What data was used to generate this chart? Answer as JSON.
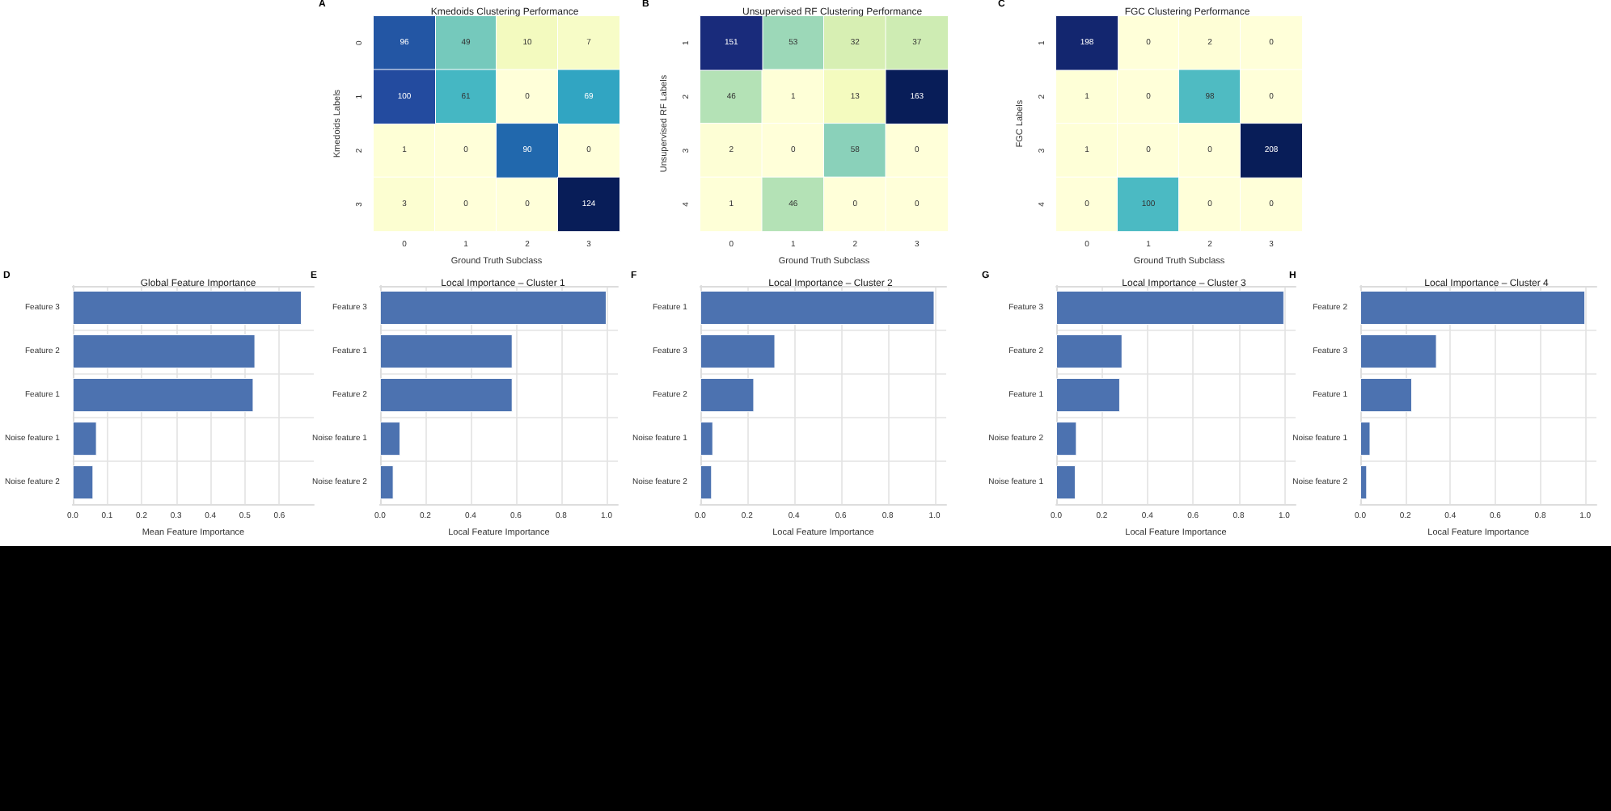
{
  "chart_data": [
    {
      "type": "heatmap",
      "title": "Kmedoids Clustering Performance",
      "xlabel": "Ground Truth Subclass",
      "ylabel": "Kmedoids Labels",
      "annotations": [
        "A"
      ],
      "categories": [
        "0",
        "1",
        "2",
        "3"
      ],
      "y_categories": [
        "0",
        "1",
        "2",
        "3"
      ],
      "cells": [
        [
          96,
          49,
          10,
          7
        ],
        [
          100,
          61,
          0,
          69
        ],
        [
          1,
          0,
          90,
          0
        ],
        [
          3,
          0,
          0,
          124
        ]
      ],
      "data_labels": true
    },
    {
      "type": "heatmap",
      "title": "Unsupervised RF Clustering Performance",
      "xlabel": "Ground Truth Subclass",
      "ylabel": "Unsupervised RF Labels",
      "annotations": [
        "B"
      ],
      "categories": [
        "0",
        "1",
        "2",
        "3"
      ],
      "y_categories": [
        "1",
        "2",
        "3",
        "4"
      ],
      "cells": [
        [
          151,
          53,
          32,
          37
        ],
        [
          46,
          1,
          13,
          163
        ],
        [
          2,
          0,
          58,
          0
        ],
        [
          1,
          46,
          0,
          0
        ]
      ],
      "data_labels": true
    },
    {
      "type": "heatmap",
      "title": "FGC Clustering Performance",
      "xlabel": "Ground Truth Subclass",
      "ylabel": "FGC Labels",
      "annotations": [
        "C"
      ],
      "categories": [
        "0",
        "1",
        "2",
        "3"
      ],
      "y_categories": [
        "1",
        "2",
        "3",
        "4"
      ],
      "cells": [
        [
          198,
          0,
          2,
          0
        ],
        [
          1,
          0,
          98,
          0
        ],
        [
          1,
          0,
          0,
          208
        ],
        [
          0,
          100,
          0,
          0
        ]
      ],
      "data_labels": true
    },
    {
      "type": "bar",
      "orientation": "horizontal",
      "title": "Global Feature Importance",
      "xlabel": "Mean Feature Importance",
      "annotations": [
        "D"
      ],
      "categories": [
        "Feature 3",
        "Feature 2",
        "Feature 1",
        "Noise feature 1",
        "Noise feature 2"
      ],
      "values": [
        0.665,
        0.53,
        0.525,
        0.07,
        0.06
      ],
      "color": "#4c72b0",
      "xlim": [
        0,
        0.7
      ],
      "xticks": [
        {
          "value": 0,
          "label": "0.0"
        },
        {
          "value": 0.1,
          "label": "0.1"
        },
        {
          "value": 0.2,
          "label": "0.2"
        },
        {
          "value": 0.3,
          "label": "0.3"
        },
        {
          "value": 0.4,
          "label": "0.4"
        },
        {
          "value": 0.5,
          "label": "0.5"
        },
        {
          "value": 0.6,
          "label": "0.6"
        }
      ],
      "grid": true
    },
    {
      "type": "bar",
      "orientation": "horizontal",
      "title": "Local Importance – Cluster 1",
      "xlabel": "Local Feature Importance",
      "annotations": [
        "E"
      ],
      "categories": [
        "Feature 3",
        "Feature 1",
        "Feature 2",
        "Noise feature 1",
        "Noise feature 2"
      ],
      "values": [
        1.0,
        0.585,
        0.585,
        0.09,
        0.06
      ],
      "color": "#4c72b0",
      "xlim": [
        0,
        1.05
      ],
      "xticks": [
        {
          "value": 0,
          "label": "0.0"
        },
        {
          "value": 0.2,
          "label": "0.2"
        },
        {
          "value": 0.4,
          "label": "0.4"
        },
        {
          "value": 0.6,
          "label": "0.6"
        },
        {
          "value": 0.8,
          "label": "0.8"
        },
        {
          "value": 1,
          "label": "1.0"
        }
      ],
      "grid": true
    },
    {
      "type": "bar",
      "orientation": "horizontal",
      "title": "Local Importance – Cluster 2",
      "xlabel": "Local Feature Importance",
      "annotations": [
        "F"
      ],
      "categories": [
        "Feature 1",
        "Feature 3",
        "Feature 2",
        "Noise feature 1",
        "Noise feature 2"
      ],
      "values": [
        1.0,
        0.32,
        0.23,
        0.055,
        0.05
      ],
      "color": "#4c72b0",
      "xlim": [
        0,
        1.05
      ],
      "xticks": [
        {
          "value": 0,
          "label": "0.0"
        },
        {
          "value": 0.2,
          "label": "0.2"
        },
        {
          "value": 0.4,
          "label": "0.4"
        },
        {
          "value": 0.6,
          "label": "0.6"
        },
        {
          "value": 0.8,
          "label": "0.8"
        },
        {
          "value": 1,
          "label": "1.0"
        }
      ],
      "grid": true
    },
    {
      "type": "bar",
      "orientation": "horizontal",
      "title": "Local Importance – Cluster 3",
      "xlabel": "Local Feature Importance",
      "annotations": [
        "G"
      ],
      "categories": [
        "Feature 3",
        "Feature 2",
        "Feature 1",
        "Noise feature 2",
        "Noise feature 1"
      ],
      "values": [
        1.0,
        0.29,
        0.28,
        0.09,
        0.085
      ],
      "color": "#4c72b0",
      "xlim": [
        0,
        1.05
      ],
      "xticks": [
        {
          "value": 0,
          "label": "0.0"
        },
        {
          "value": 0.2,
          "label": "0.2"
        },
        {
          "value": 0.4,
          "label": "0.4"
        },
        {
          "value": 0.6,
          "label": "0.6"
        },
        {
          "value": 0.8,
          "label": "0.8"
        },
        {
          "value": 1,
          "label": "1.0"
        }
      ],
      "grid": true
    },
    {
      "type": "bar",
      "orientation": "horizontal",
      "title": "Local Importance – Cluster 4",
      "xlabel": "Local Feature Importance",
      "annotations": [
        "H"
      ],
      "categories": [
        "Feature 2",
        "Feature 3",
        "Feature 1",
        "Noise feature 1",
        "Noise feature 2"
      ],
      "values": [
        1.0,
        0.34,
        0.23,
        0.045,
        0.03
      ],
      "color": "#4c72b0",
      "xlim": [
        0,
        1.05
      ],
      "xticks": [
        {
          "value": 0,
          "label": "0.0"
        },
        {
          "value": 0.2,
          "label": "0.2"
        },
        {
          "value": 0.4,
          "label": "0.4"
        },
        {
          "value": 0.6,
          "label": "0.6"
        },
        {
          "value": 0.8,
          "label": "0.8"
        },
        {
          "value": 1,
          "label": "1.0"
        }
      ],
      "grid": true
    }
  ]
}
